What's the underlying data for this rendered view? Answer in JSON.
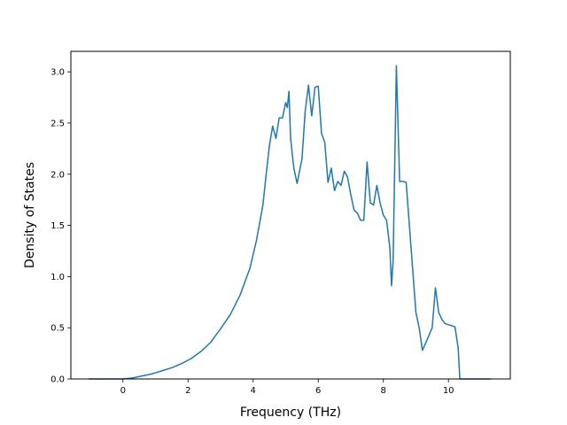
{
  "chart_data": {
    "type": "line",
    "title": "",
    "xlabel": "Frequency (THz)",
    "ylabel": "Density of States",
    "xlim": [
      -1.6,
      11.9
    ],
    "ylim": [
      0,
      3.2
    ],
    "xticks": [
      0,
      2,
      4,
      6,
      8,
      10
    ],
    "xtick_labels": [
      "0",
      "2",
      "4",
      "6",
      "8",
      "10"
    ],
    "yticks": [
      0.0,
      0.5,
      1.0,
      1.5,
      2.0,
      2.5,
      3.0
    ],
    "ytick_labels": [
      "0.0",
      "0.5",
      "1.0",
      "1.5",
      "2.0",
      "2.5",
      "3.0"
    ],
    "grid": false,
    "legend": "none",
    "line_color": "#1f77b4",
    "series": [
      {
        "x": [
          -1.05,
          0.0,
          0.3,
          0.6,
          0.9,
          1.2,
          1.5,
          1.8,
          2.1,
          2.4,
          2.7,
          3.0,
          3.3,
          3.6,
          3.9,
          4.1,
          4.3,
          4.4,
          4.5,
          4.6,
          4.7,
          4.8,
          4.9,
          5.0,
          5.05,
          5.1,
          5.15,
          5.25,
          5.35,
          5.5,
          5.6,
          5.7,
          5.8,
          5.9,
          6.0,
          6.1,
          6.2,
          6.3,
          6.4,
          6.5,
          6.6,
          6.7,
          6.8,
          6.9,
          7.0,
          7.1,
          7.2,
          7.3,
          7.4,
          7.5,
          7.6,
          7.7,
          7.8,
          7.9,
          8.0,
          8.1,
          8.2,
          8.25,
          8.3,
          8.35,
          8.4,
          8.5,
          8.6,
          8.7,
          8.8,
          9.0,
          9.1,
          9.2,
          9.3,
          9.5,
          9.6,
          9.7,
          9.8,
          9.9,
          10.0,
          10.1,
          10.2,
          10.3,
          10.35,
          10.4,
          10.5,
          11.3
        ],
        "y": [
          0.0,
          0.0,
          0.01,
          0.03,
          0.05,
          0.08,
          0.11,
          0.15,
          0.2,
          0.27,
          0.36,
          0.49,
          0.63,
          0.82,
          1.08,
          1.35,
          1.7,
          2.0,
          2.28,
          2.47,
          2.35,
          2.55,
          2.55,
          2.7,
          2.65,
          2.81,
          2.35,
          2.06,
          1.91,
          2.15,
          2.62,
          2.87,
          2.57,
          2.85,
          2.86,
          2.4,
          2.31,
          1.92,
          2.06,
          1.84,
          1.93,
          1.89,
          2.03,
          1.97,
          1.8,
          1.65,
          1.62,
          1.55,
          1.55,
          2.12,
          1.72,
          1.7,
          1.89,
          1.72,
          1.6,
          1.55,
          1.28,
          0.91,
          1.15,
          2.1,
          3.06,
          1.93,
          1.93,
          1.92,
          1.5,
          0.65,
          0.5,
          0.28,
          0.35,
          0.5,
          0.89,
          0.65,
          0.58,
          0.54,
          0.53,
          0.52,
          0.51,
          0.3,
          0.0,
          0.0,
          0.0,
          0.0
        ]
      }
    ]
  }
}
